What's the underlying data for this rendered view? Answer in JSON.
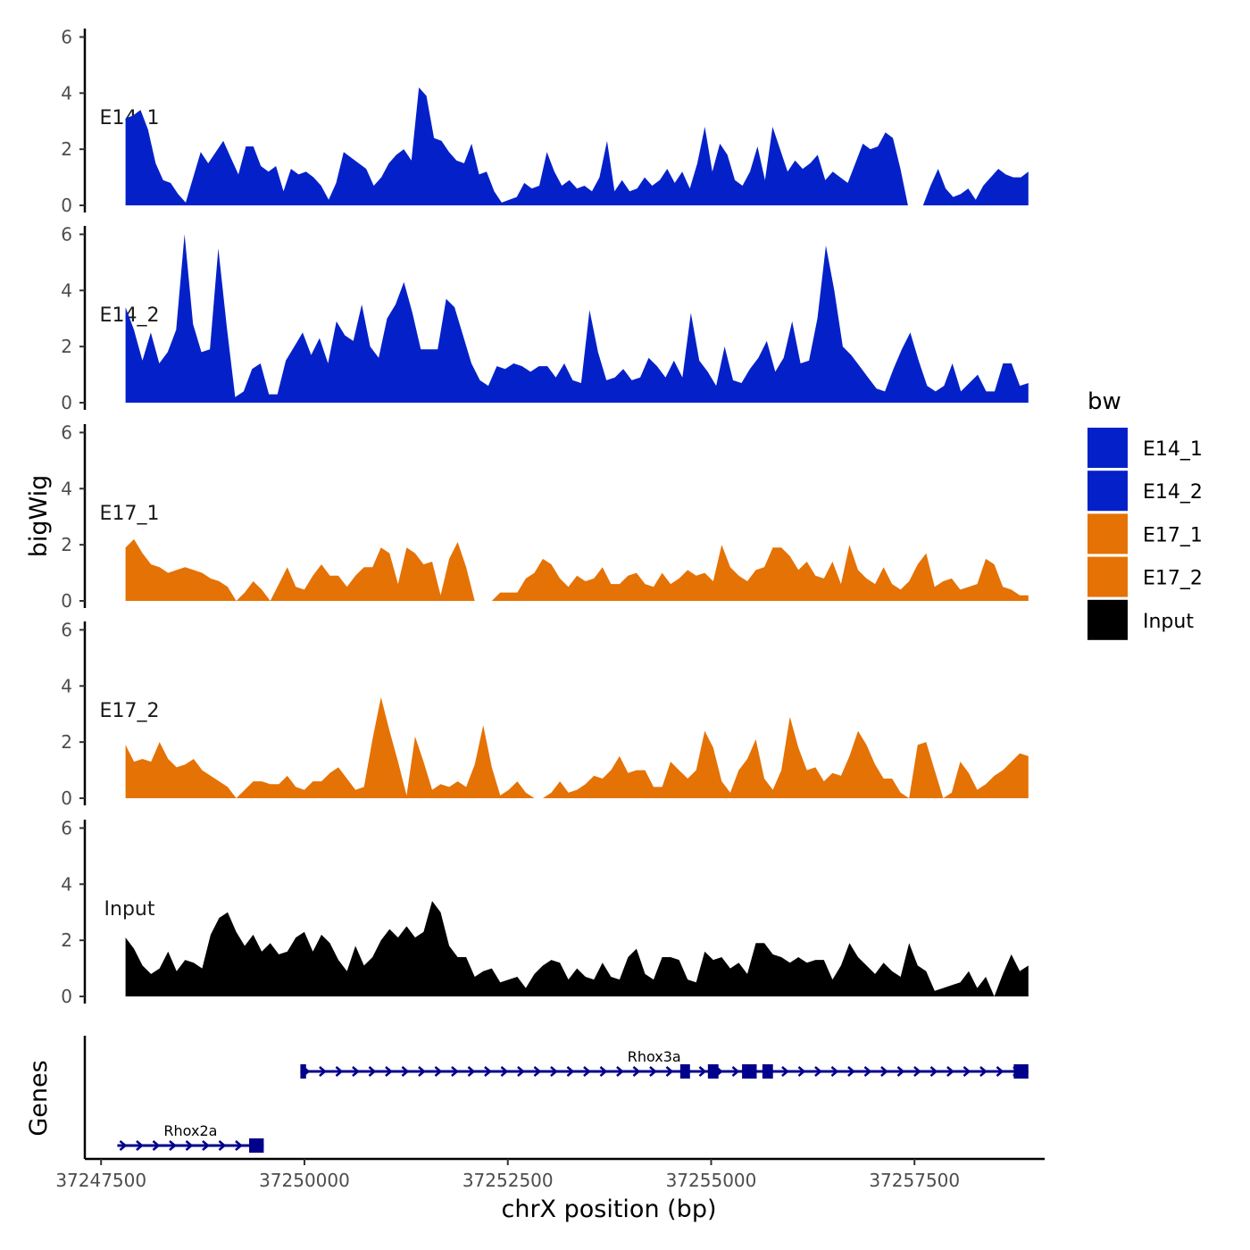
{
  "chart_data": {
    "type": "area",
    "region": "chrX",
    "xlabel": "chrX position (bp)",
    "ylabel": "bigWig",
    "genes_label": "Genes",
    "xlim": [
      37247300,
      37259100
    ],
    "data_xlim": [
      37247800,
      37258900
    ],
    "ylim": [
      0,
      6.3
    ],
    "y_ticks": [
      0,
      2,
      4,
      6
    ],
    "x_ticks": [
      37247500,
      37250000,
      37252500,
      37255000,
      37257500
    ],
    "x_tick_labels": [
      "37247500",
      "37250000",
      "37252500",
      "37255000",
      "37257500"
    ],
    "legend": {
      "title": "bw",
      "entries": [
        {
          "name": "E14_1",
          "color": "#0421c9"
        },
        {
          "name": "E14_2",
          "color": "#0421c9"
        },
        {
          "name": "E17_1",
          "color": "#e57205"
        },
        {
          "name": "E17_2",
          "color": "#e57205"
        },
        {
          "name": "Input",
          "color": "#000000"
        }
      ]
    },
    "series": [
      {
        "name": "E14_1",
        "color": "#0421c9",
        "values": [
          3.1,
          3.2,
          3.4,
          2.7,
          1.5,
          0.9,
          0.8,
          0.4,
          0.1,
          1.0,
          1.9,
          1.5,
          1.9,
          2.3,
          1.7,
          1.1,
          2.1,
          2.1,
          1.4,
          1.2,
          1.4,
          0.5,
          1.3,
          1.1,
          1.2,
          1.0,
          0.7,
          0.2,
          0.8,
          1.9,
          1.7,
          1.5,
          1.3,
          0.7,
          1.0,
          1.5,
          1.8,
          2.0,
          1.6,
          4.2,
          3.9,
          2.4,
          2.3,
          1.9,
          1.6,
          1.5,
          2.2,
          1.1,
          1.2,
          0.5,
          0.1,
          0.2,
          0.3,
          0.8,
          0.6,
          0.7,
          1.9,
          1.2,
          0.7,
          0.9,
          0.6,
          0.7,
          0.5,
          1.0,
          2.3,
          0.5,
          0.9,
          0.5,
          0.6,
          1.0,
          0.7,
          0.9,
          1.3,
          0.8,
          1.2,
          0.6,
          1.5,
          2.8,
          1.2,
          2.2,
          1.8,
          0.9,
          0.7,
          1.2,
          2.1,
          0.9,
          2.8,
          2.0,
          1.2,
          1.6,
          1.3,
          1.5,
          1.8,
          0.9,
          1.2,
          1.0,
          0.8,
          1.5,
          2.2,
          2.0,
          2.1,
          2.6,
          2.4,
          1.3,
          0.0,
          0.0,
          0.0,
          0.7,
          1.3,
          0.6,
          0.3,
          0.4,
          0.6,
          0.2,
          0.7,
          1.0,
          1.3,
          1.1,
          1.0,
          1.0,
          1.2
        ]
      },
      {
        "name": "E14_2",
        "color": "#0421c9",
        "values": [
          3.4,
          2.6,
          1.5,
          2.5,
          1.4,
          1.8,
          2.6,
          6.0,
          2.8,
          1.8,
          1.9,
          5.5,
          2.7,
          0.2,
          0.4,
          1.2,
          1.4,
          0.3,
          0.3,
          1.5,
          2.0,
          2.5,
          1.7,
          2.3,
          1.4,
          2.9,
          2.4,
          2.2,
          3.5,
          2.0,
          1.6,
          3.0,
          3.5,
          4.3,
          3.2,
          1.9,
          1.9,
          1.9,
          3.7,
          3.4,
          2.4,
          1.4,
          0.8,
          0.6,
          1.3,
          1.2,
          1.4,
          1.3,
          1.1,
          1.3,
          1.3,
          0.9,
          1.4,
          0.8,
          0.7,
          3.3,
          1.8,
          0.8,
          0.9,
          1.2,
          0.8,
          0.9,
          1.6,
          1.3,
          0.9,
          1.5,
          0.9,
          3.2,
          1.5,
          1.1,
          0.6,
          2.0,
          0.8,
          0.7,
          1.2,
          1.6,
          2.2,
          1.1,
          1.6,
          2.9,
          1.4,
          1.5,
          3.0,
          5.6,
          4.0,
          2.0,
          1.7,
          1.3,
          0.9,
          0.5,
          0.4,
          1.2,
          1.9,
          2.5,
          1.5,
          0.6,
          0.4,
          0.6,
          1.4,
          0.4,
          0.7,
          1.0,
          0.4,
          0.4,
          1.4,
          1.4,
          0.6,
          0.7
        ]
      },
      {
        "name": "E17_1",
        "color": "#e57205",
        "values": [
          1.9,
          2.2,
          1.7,
          1.3,
          1.2,
          1.0,
          1.1,
          1.2,
          1.1,
          1.0,
          0.8,
          0.7,
          0.5,
          0.0,
          0.3,
          0.7,
          0.4,
          0.0,
          0.6,
          1.2,
          0.5,
          0.4,
          0.9,
          1.3,
          0.9,
          0.9,
          0.5,
          0.9,
          1.2,
          1.2,
          1.9,
          1.7,
          0.6,
          1.9,
          1.7,
          1.3,
          1.4,
          0.2,
          1.5,
          2.1,
          1.2,
          0.0,
          0.0,
          0.0,
          0.3,
          0.3,
          0.3,
          0.8,
          1.0,
          1.5,
          1.3,
          0.8,
          0.5,
          0.9,
          0.7,
          0.8,
          1.2,
          0.6,
          0.6,
          0.9,
          1.0,
          0.6,
          0.5,
          1.0,
          0.6,
          0.8,
          1.1,
          0.9,
          1.0,
          0.7,
          2.0,
          1.2,
          0.9,
          0.7,
          1.1,
          1.2,
          1.9,
          1.9,
          1.6,
          1.1,
          1.4,
          0.9,
          0.8,
          1.4,
          0.6,
          2.0,
          1.1,
          0.8,
          0.6,
          1.2,
          0.6,
          0.4,
          0.7,
          1.3,
          1.7,
          0.5,
          0.7,
          0.8,
          0.4,
          0.5,
          0.6,
          1.5,
          1.3,
          0.5,
          0.4,
          0.2,
          0.2
        ]
      },
      {
        "name": "E17_2",
        "color": "#e57205",
        "values": [
          1.9,
          1.3,
          1.4,
          1.3,
          2.0,
          1.4,
          1.1,
          1.2,
          1.4,
          1.0,
          0.8,
          0.6,
          0.4,
          0.0,
          0.3,
          0.6,
          0.6,
          0.5,
          0.5,
          0.8,
          0.4,
          0.3,
          0.6,
          0.6,
          0.9,
          1.1,
          0.7,
          0.3,
          0.4,
          2.1,
          3.6,
          2.4,
          1.3,
          0.1,
          2.2,
          1.3,
          0.3,
          0.5,
          0.4,
          0.6,
          0.4,
          1.2,
          2.6,
          1.1,
          0.1,
          0.3,
          0.6,
          0.2,
          0.0,
          0.0,
          0.2,
          0.6,
          0.2,
          0.3,
          0.5,
          0.8,
          0.7,
          1.0,
          1.5,
          0.9,
          1.0,
          1.0,
          0.4,
          0.4,
          1.3,
          1.0,
          0.7,
          1.0,
          2.4,
          1.8,
          0.6,
          0.2,
          1.0,
          1.4,
          2.1,
          0.7,
          0.3,
          1.0,
          2.9,
          1.8,
          1.0,
          1.1,
          0.6,
          0.9,
          0.8,
          1.5,
          2.4,
          1.9,
          1.2,
          0.7,
          0.7,
          0.2,
          0.0,
          1.9,
          2.0,
          1.0,
          0.0,
          0.2,
          1.3,
          0.9,
          0.3,
          0.5,
          0.8,
          1.0,
          1.3,
          1.6,
          1.5
        ]
      },
      {
        "name": "Input",
        "color": "#000000",
        "values": [
          2.1,
          1.7,
          1.1,
          0.8,
          1.0,
          1.6,
          0.9,
          1.3,
          1.2,
          1.0,
          2.2,
          2.8,
          3.0,
          2.3,
          1.8,
          2.2,
          1.6,
          1.9,
          1.5,
          1.6,
          2.1,
          2.3,
          1.6,
          2.2,
          1.9,
          1.3,
          0.9,
          1.8,
          1.1,
          1.4,
          2.0,
          2.4,
          2.1,
          2.5,
          2.1,
          2.3,
          3.4,
          3.0,
          1.8,
          1.4,
          1.4,
          0.7,
          0.9,
          1.0,
          0.5,
          0.6,
          0.7,
          0.3,
          0.8,
          1.1,
          1.3,
          1.2,
          0.6,
          1.0,
          0.7,
          0.6,
          1.2,
          0.7,
          0.6,
          1.4,
          1.7,
          0.8,
          0.6,
          1.4,
          1.4,
          1.3,
          0.6,
          0.5,
          1.6,
          1.3,
          1.4,
          1.0,
          1.2,
          0.8,
          1.9,
          1.9,
          1.5,
          1.4,
          1.2,
          1.4,
          1.2,
          1.3,
          1.3,
          0.6,
          1.1,
          1.9,
          1.4,
          1.1,
          0.8,
          1.2,
          0.9,
          0.7,
          1.9,
          1.1,
          0.9,
          0.2,
          0.3,
          0.4,
          0.5,
          0.9,
          0.3,
          0.7,
          0.0,
          0.8,
          1.5,
          0.9,
          1.1
        ]
      }
    ],
    "genes": [
      {
        "name": "Rhox3a",
        "start": 37249950,
        "end": 37258900,
        "strand": "+",
        "exons": [
          [
            37249950,
            37250020
          ],
          [
            37254620,
            37254740
          ],
          [
            37254960,
            37255090
          ],
          [
            37255380,
            37255560
          ],
          [
            37255630,
            37255760
          ],
          [
            37258720,
            37258900
          ]
        ]
      },
      {
        "name": "Rhox2a",
        "start": 37247700,
        "end": 37249500,
        "strand": "+",
        "exons": [
          [
            37249320,
            37249500
          ]
        ]
      }
    ]
  }
}
